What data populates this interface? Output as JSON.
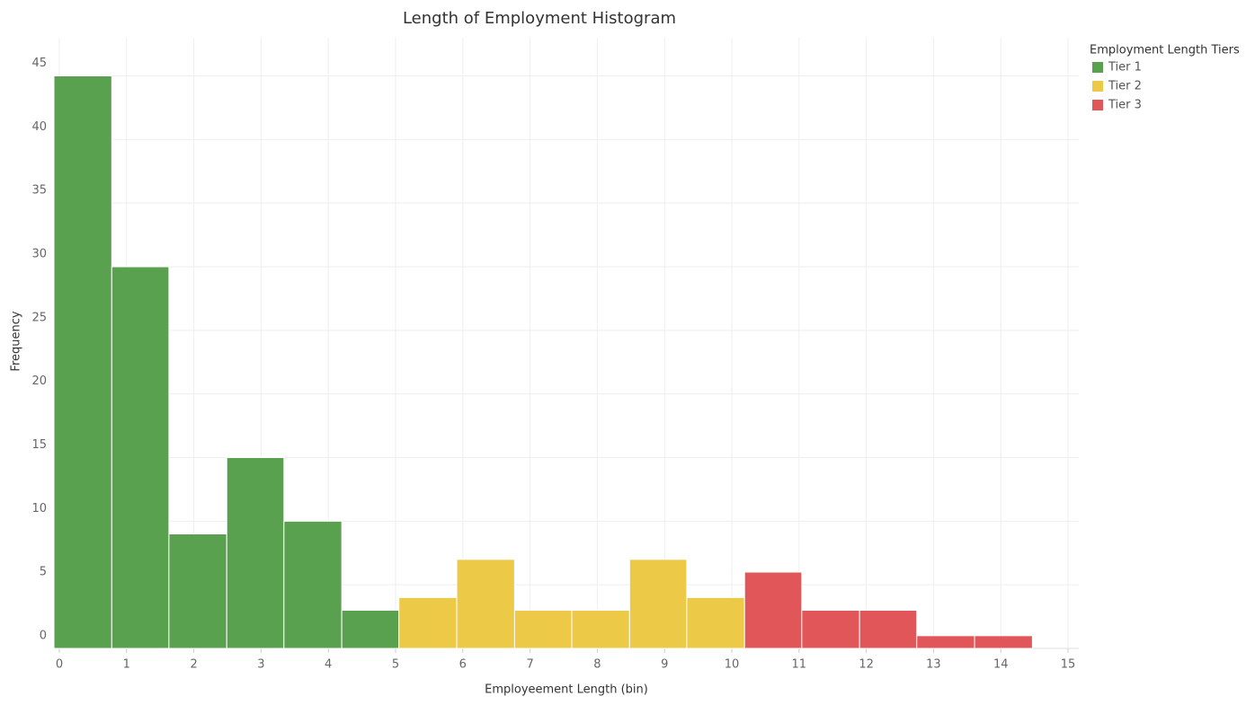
{
  "chart_data": {
    "type": "histogram",
    "title": "Length of Employment Histogram",
    "x_label": "Employeement Length (bin)",
    "y_label": "Frequency",
    "legend_title": "Employment Length Tiers",
    "legend_position": "right",
    "bins": [
      -0.08,
      0.78,
      1.63,
      2.49,
      3.34,
      4.2,
      5.05,
      5.91,
      6.77,
      7.62,
      8.48,
      9.33,
      10.19,
      11.04,
      11.9,
      12.75,
      13.61,
      14.47
    ],
    "series": [
      {
        "name": "Tier 1",
        "color": "#59a14f",
        "values": [
          45,
          30,
          9,
          15,
          10,
          3,
          null,
          null,
          null,
          null,
          null,
          null,
          null,
          null,
          null,
          null,
          null
        ]
      },
      {
        "name": "Tier 2",
        "color": "#edc948",
        "values": [
          null,
          null,
          null,
          null,
          null,
          null,
          4,
          7,
          3,
          3,
          7,
          4,
          null,
          null,
          null,
          null,
          null
        ]
      },
      {
        "name": "Tier 3",
        "color": "#e15759",
        "values": [
          null,
          null,
          null,
          null,
          null,
          null,
          null,
          null,
          null,
          null,
          null,
          null,
          6,
          3,
          3,
          1,
          1
        ]
      }
    ],
    "xlim": [
      -0.08,
      15.16
    ],
    "xticks": [
      0,
      1,
      2,
      3,
      4,
      5,
      6,
      7,
      8,
      9,
      10,
      11,
      12,
      13,
      14,
      15
    ],
    "ylim": [
      0,
      48
    ],
    "yticks": [
      0,
      5,
      10,
      15,
      20,
      25,
      30,
      35,
      40,
      45
    ],
    "grid": true
  }
}
